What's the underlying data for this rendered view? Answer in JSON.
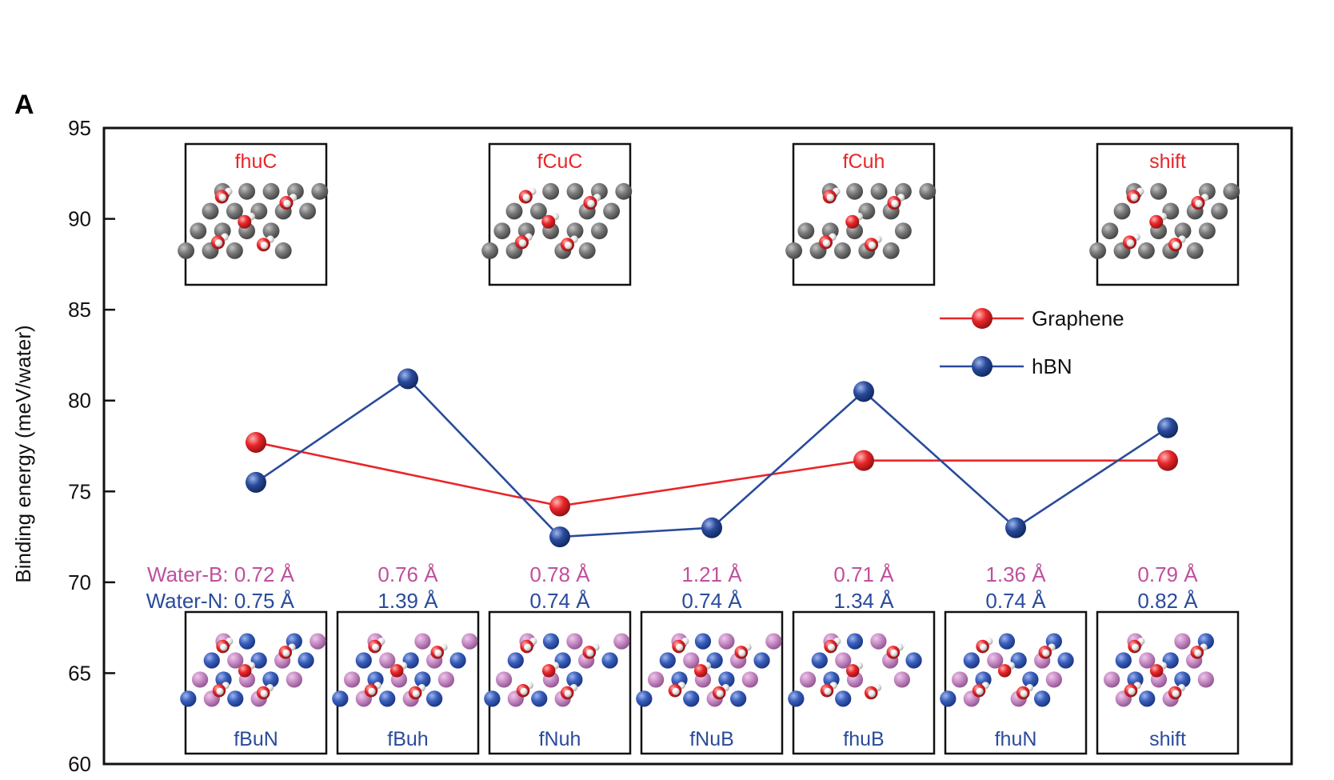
{
  "panel_label": "A",
  "colors": {
    "graphene": "#e8262a",
    "hbn": "#2a4b9b",
    "water_b": "#c0509c",
    "water_n": "#2a4b9b",
    "axis": "#111111"
  },
  "chart_data": {
    "type": "line",
    "title": "",
    "xlabel": "",
    "ylabel": "Binding energy (meV/water)",
    "ylim": [
      60,
      95
    ],
    "yticks": [
      60,
      65,
      70,
      75,
      80,
      85,
      90,
      95
    ],
    "x": [
      1,
      2,
      3,
      4,
      5,
      6,
      7
    ],
    "series": [
      {
        "name": "Graphene",
        "x": [
          1,
          3,
          5,
          7
        ],
        "values": [
          77.7,
          74.2,
          76.7,
          76.7
        ]
      },
      {
        "name": "hBN",
        "x": [
          1,
          2,
          3,
          4,
          5,
          6,
          7
        ],
        "values": [
          75.5,
          81.2,
          72.5,
          73.0,
          80.5,
          73.0,
          78.5
        ]
      }
    ],
    "legend": {
      "position": "right",
      "entries": [
        "Graphene",
        "hBN"
      ]
    },
    "grid": false
  },
  "top_insets": [
    "fhuC",
    "fCuC",
    "fCuh",
    "shift"
  ],
  "bottom_insets": [
    "fBuN",
    "fBuh",
    "fNuh",
    "fNuB",
    "fhuB",
    "fhuN",
    "shift"
  ],
  "distance_labels": {
    "water_b_label": "Water-B",
    "water_n_label": "Water-N",
    "water_b": [
      "0.72 Å",
      "0.76 Å",
      "0.78 Å",
      "1.21 Å",
      "0.71 Å",
      "1.36 Å",
      "0.79 Å"
    ],
    "water_n": [
      "0.75 Å",
      "1.39 Å",
      "0.74 Å",
      "0.74 Å",
      "1.34 Å",
      "0.74 Å",
      "0.82 Å"
    ]
  }
}
